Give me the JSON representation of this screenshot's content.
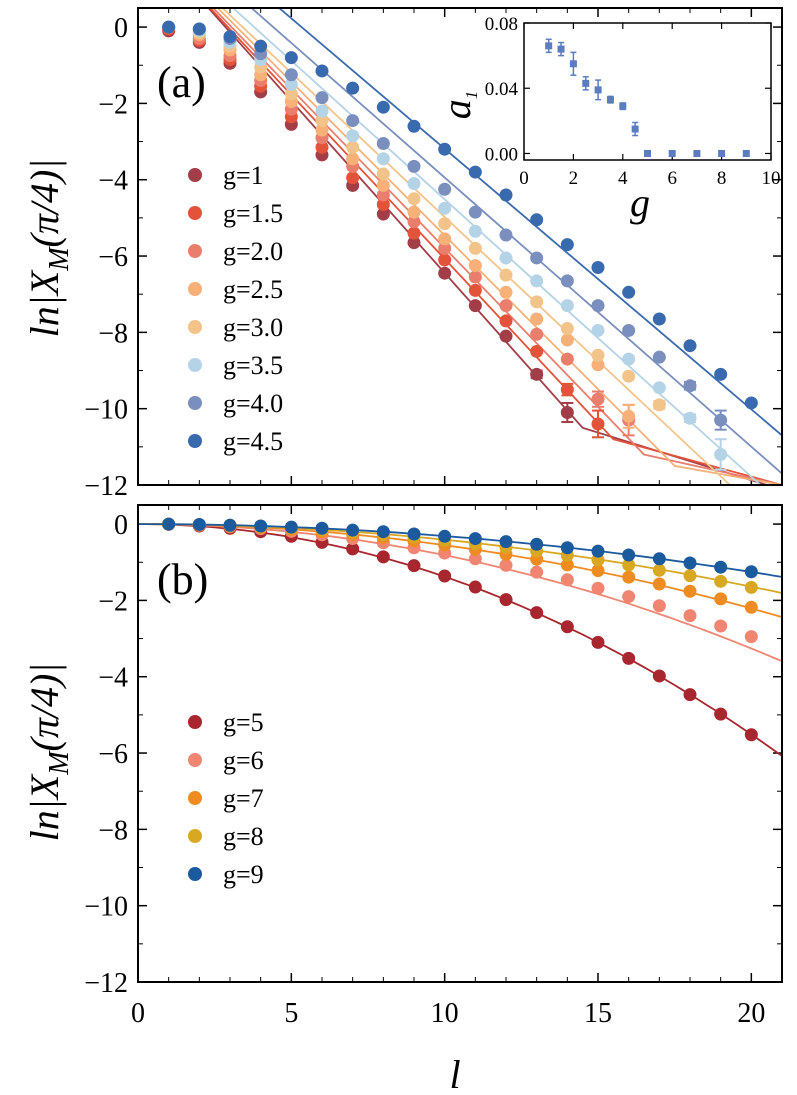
{
  "chart_data": [
    {
      "type": "scatter",
      "panel_label": "(a)",
      "ylabel": "ln|X_M(π/4)|",
      "ylabel_parts": {
        "pre": "ln|X",
        "sub": "M",
        "post": "(π/4)|"
      },
      "xlabel": "",
      "xlim": [
        0,
        21
      ],
      "ylim": [
        -12,
        0.5
      ],
      "xticks": [
        0,
        5,
        10,
        15,
        20
      ],
      "yticks": [
        0,
        -2,
        -4,
        -6,
        -8,
        -10,
        -12
      ],
      "ytick_labels": [
        "0",
        "−2",
        "−4",
        "−6",
        "−8",
        "−10",
        "−12"
      ],
      "legend_position": "middle-left",
      "fits": "piecewise linear (exponential decay) fit line per series",
      "series": [
        {
          "name": "g=1",
          "color": "#a33d47",
          "x": [
            1,
            2,
            3,
            4,
            5,
            6,
            7,
            8,
            9,
            10,
            11,
            12,
            13,
            14
          ],
          "y": [
            -0.1,
            -0.4,
            -0.95,
            -1.7,
            -2.55,
            -3.35,
            -4.15,
            -4.9,
            -5.65,
            -6.45,
            -7.3,
            -8.1,
            -9.1,
            -10.1
          ],
          "err": [
            0,
            0,
            0,
            0,
            0,
            0,
            0,
            0,
            0,
            0,
            0,
            0,
            0.1,
            0.25
          ],
          "fit": [
            [
              2.3,
              0.5
            ],
            [
              14.5,
              -10.5
            ],
            [
              20.5,
              -12
            ]
          ]
        },
        {
          "name": "g=1.5",
          "color": "#e2533a",
          "x": [
            1,
            2,
            3,
            4,
            5,
            6,
            7,
            8,
            9,
            10,
            11,
            12,
            13,
            14,
            15
          ],
          "y": [
            -0.05,
            -0.35,
            -0.85,
            -1.55,
            -2.35,
            -3.15,
            -3.95,
            -4.65,
            -5.4,
            -6.1,
            -6.9,
            -7.7,
            -8.5,
            -9.5,
            -10.4
          ],
          "err": [
            0,
            0,
            0,
            0,
            0,
            0,
            0,
            0,
            0,
            0,
            0,
            0,
            0,
            0.15,
            0.35
          ],
          "fit": [
            [
              2.35,
              0.5
            ],
            [
              15.5,
              -10.8
            ],
            [
              21,
              -12
            ]
          ]
        },
        {
          "name": "g=2.0",
          "color": "#ea7e6d",
          "x": [
            1,
            2,
            3,
            4,
            5,
            6,
            7,
            8,
            9,
            10,
            11,
            12,
            13,
            14,
            15,
            16
          ],
          "y": [
            0,
            -0.3,
            -0.75,
            -1.4,
            -2.15,
            -2.9,
            -3.65,
            -4.4,
            -5.1,
            -5.8,
            -6.55,
            -7.3,
            -8.05,
            -8.7,
            -9.75,
            -10.3
          ],
          "err": [
            0,
            0,
            0,
            0,
            0,
            0,
            0,
            0,
            0,
            0,
            0,
            0,
            0,
            0,
            0.2,
            0.4
          ],
          "fit": [
            [
              2.45,
              0.5
            ],
            [
              16.5,
              -11.2
            ],
            [
              21,
              -12
            ]
          ]
        },
        {
          "name": "g=2.5",
          "color": "#f6b078",
          "x": [
            1,
            2,
            3,
            4,
            5,
            6,
            7,
            8,
            9,
            10,
            11,
            12,
            13,
            14,
            15,
            16
          ],
          "y": [
            0,
            -0.2,
            -0.6,
            -1.25,
            -1.95,
            -2.7,
            -3.45,
            -4.15,
            -4.85,
            -5.55,
            -6.25,
            -6.95,
            -7.65,
            -8.2,
            -8.85,
            -10.2
          ],
          "err": [
            0,
            0,
            0,
            0,
            0,
            0,
            0,
            0,
            0,
            0,
            0,
            0,
            0,
            0,
            0,
            0.3
          ],
          "fit": [
            [
              2.6,
              0.5
            ],
            [
              17.5,
              -11.5
            ],
            [
              21,
              -12
            ]
          ]
        },
        {
          "name": "g=3.0",
          "color": "#f3c48a",
          "x": [
            1,
            2,
            3,
            4,
            5,
            6,
            7,
            8,
            9,
            10,
            11,
            12,
            13,
            14,
            15,
            16,
            17
          ],
          "y": [
            0,
            -0.15,
            -0.5,
            -1.05,
            -1.75,
            -2.45,
            -3.15,
            -3.85,
            -4.5,
            -5.15,
            -5.8,
            -6.5,
            -7.2,
            -7.9,
            -8.6,
            -9.15,
            -9.9
          ],
          "err": [
            0,
            0,
            0,
            0,
            0,
            0,
            0,
            0,
            0,
            0,
            0,
            0,
            0,
            0,
            0,
            0,
            0.1
          ],
          "fit": [
            [
              2.75,
              0.5
            ],
            [
              19.3,
              -12
            ],
            [
              21,
              -12
            ]
          ]
        },
        {
          "name": "g=3.5",
          "color": "#b5d3e7",
          "x": [
            1,
            2,
            3,
            4,
            5,
            6,
            7,
            8,
            9,
            10,
            11,
            12,
            13,
            14,
            15,
            16,
            17,
            18,
            19
          ],
          "y": [
            0,
            -0.1,
            -0.4,
            -0.85,
            -1.5,
            -2.2,
            -2.85,
            -3.45,
            -4.1,
            -4.75,
            -5.35,
            -6.05,
            -6.65,
            -7.3,
            -7.95,
            -8.7,
            -9.45,
            -10.25,
            -11.2
          ],
          "err": [
            0,
            0,
            0,
            0,
            0,
            0,
            0,
            0,
            0,
            0,
            0,
            0,
            0,
            0,
            0,
            0,
            0,
            0.1,
            0.4
          ],
          "fit": [
            [
              3.1,
              0.5
            ],
            [
              20.3,
              -12
            ],
            [
              21,
              -12
            ]
          ]
        },
        {
          "name": "g=4.0",
          "color": "#7a8fbe",
          "x": [
            1,
            2,
            3,
            4,
            5,
            6,
            7,
            8,
            9,
            10,
            11,
            12,
            13,
            14,
            15,
            16,
            17,
            18,
            19
          ],
          "y": [
            0,
            -0.05,
            -0.3,
            -0.7,
            -1.25,
            -1.85,
            -2.45,
            -3.05,
            -3.65,
            -4.25,
            -4.85,
            -5.45,
            -6.05,
            -6.65,
            -7.3,
            -7.95,
            -8.65,
            -9.4,
            -10.3
          ],
          "err": [
            0,
            0,
            0,
            0,
            0,
            0,
            0,
            0,
            0,
            0,
            0,
            0,
            0,
            0,
            0,
            0,
            0,
            0.1,
            0.25
          ],
          "fit": [
            [
              3.7,
              0.5
            ],
            [
              21,
              -11.7
            ]
          ]
        },
        {
          "name": "g=4.5",
          "color": "#3a6aae",
          "x": [
            1,
            2,
            3,
            4,
            5,
            6,
            7,
            8,
            9,
            10,
            11,
            12,
            13,
            14,
            15,
            16,
            17,
            18,
            19,
            20
          ],
          "y": [
            0,
            -0.05,
            -0.25,
            -0.5,
            -0.8,
            -1.15,
            -1.6,
            -2.1,
            -2.6,
            -3.2,
            -3.8,
            -4.4,
            -5.05,
            -5.7,
            -6.3,
            -6.95,
            -7.65,
            -8.35,
            -9.1,
            -9.85
          ],
          "err": [
            0,
            0,
            0,
            0,
            0,
            0,
            0,
            0,
            0,
            0,
            0,
            0,
            0,
            0,
            0,
            0,
            0,
            0,
            0,
            0
          ],
          "fit": [
            [
              4.6,
              0.5
            ],
            [
              21,
              -10.7
            ]
          ]
        }
      ],
      "inset": {
        "type": "scatter",
        "xlabel": "g",
        "ylabel": "a_1",
        "ylabel_parts": {
          "pre": "a",
          "sub": "1"
        },
        "xlim": [
          0,
          10
        ],
        "ylim": [
          -0.004,
          0.08
        ],
        "xticks": [
          0,
          2,
          4,
          6,
          8,
          10
        ],
        "yticks": [
          0.0,
          0.04,
          0.08
        ],
        "ytick_labels": [
          "0.00",
          "0.04",
          "0.08"
        ],
        "color": "#5b7dbf",
        "x": [
          1,
          1.5,
          2,
          2.5,
          3,
          3.5,
          4,
          4.5,
          5,
          6,
          7,
          8,
          9
        ],
        "y": [
          0.066,
          0.064,
          0.055,
          0.043,
          0.039,
          0.033,
          0.029,
          0.015,
          0.0,
          0.0,
          0.0,
          0.0,
          0.0
        ],
        "err": [
          0.004,
          0.004,
          0.007,
          0.004,
          0.006,
          0.002,
          0.002,
          0.004,
          0,
          0,
          0,
          0,
          0
        ]
      }
    },
    {
      "type": "scatter",
      "panel_label": "(b)",
      "ylabel": "ln|X_M(π/4)|",
      "ylabel_parts": {
        "pre": "ln|X",
        "sub": "M",
        "post": "(π/4)|"
      },
      "xlabel": "l",
      "xlim": [
        0,
        21
      ],
      "ylim": [
        -12,
        0.5
      ],
      "xticks": [
        0,
        5,
        10,
        15,
        20
      ],
      "xtick_labels": [
        "0",
        "5",
        "10",
        "15",
        "20"
      ],
      "yticks": [
        0,
        -2,
        -4,
        -6,
        -8,
        -10,
        -12
      ],
      "ytick_labels": [
        "0",
        "−2",
        "−4",
        "−6",
        "−8",
        "−10",
        "−12"
      ],
      "legend_position": "middle-left",
      "fits": "quadratic fit line per series",
      "series": [
        {
          "name": "g=5",
          "color": "#a8262e",
          "x": [
            1,
            2,
            3,
            4,
            5,
            6,
            7,
            8,
            9,
            10,
            11,
            12,
            13,
            14,
            15,
            16,
            17,
            18,
            19,
            20
          ],
          "y": [
            -0.01,
            -0.05,
            -0.11,
            -0.2,
            -0.32,
            -0.48,
            -0.65,
            -0.86,
            -1.09,
            -1.36,
            -1.65,
            -1.98,
            -2.32,
            -2.69,
            -3.1,
            -3.52,
            -3.98,
            -4.47,
            -4.98,
            -5.52
          ],
          "fitc": 0.01378
        },
        {
          "name": "g=6",
          "color": "#f08572",
          "x": [
            1,
            2,
            3,
            4,
            5,
            6,
            7,
            8,
            9,
            10,
            11,
            12,
            13,
            14,
            15,
            16,
            17,
            18,
            19,
            20
          ],
          "y": [
            -0.01,
            -0.03,
            -0.07,
            -0.12,
            -0.19,
            -0.28,
            -0.38,
            -0.49,
            -0.62,
            -0.76,
            -0.91,
            -1.08,
            -1.26,
            -1.46,
            -1.68,
            -1.9,
            -2.14,
            -2.4,
            -2.67,
            -2.95
          ],
          "fitc": 0.00815
        },
        {
          "name": "g=7",
          "color": "#ee8c22",
          "x": [
            1,
            2,
            3,
            4,
            5,
            6,
            7,
            8,
            9,
            10,
            11,
            12,
            13,
            14,
            15,
            16,
            17,
            18,
            19,
            20
          ],
          "y": [
            0,
            -0.02,
            -0.05,
            -0.09,
            -0.14,
            -0.2,
            -0.27,
            -0.35,
            -0.44,
            -0.55,
            -0.66,
            -0.79,
            -0.92,
            -1.07,
            -1.22,
            -1.39,
            -1.57,
            -1.76,
            -1.96,
            -2.18
          ],
          "fitc": 0.00553
        },
        {
          "name": "g=8",
          "color": "#d9a822",
          "x": [
            1,
            2,
            3,
            4,
            5,
            6,
            7,
            8,
            9,
            10,
            11,
            12,
            13,
            14,
            15,
            16,
            17,
            18,
            19,
            20
          ],
          "y": [
            0,
            -0.01,
            -0.03,
            -0.07,
            -0.1,
            -0.15,
            -0.21,
            -0.27,
            -0.34,
            -0.42,
            -0.51,
            -0.61,
            -0.71,
            -0.82,
            -0.94,
            -1.07,
            -1.21,
            -1.35,
            -1.5,
            -1.66
          ],
          "fitc": 0.0041
        },
        {
          "name": "g=9",
          "color": "#1c5a9e",
          "x": [
            1,
            2,
            3,
            4,
            5,
            6,
            7,
            8,
            9,
            10,
            11,
            12,
            13,
            14,
            15,
            16,
            17,
            18,
            19,
            20
          ],
          "y": [
            0,
            -0.01,
            -0.03,
            -0.05,
            -0.08,
            -0.11,
            -0.16,
            -0.2,
            -0.26,
            -0.32,
            -0.38,
            -0.46,
            -0.53,
            -0.62,
            -0.71,
            -0.81,
            -0.91,
            -1.02,
            -1.13,
            -1.25
          ],
          "fitc": 0.00314
        }
      ]
    }
  ]
}
